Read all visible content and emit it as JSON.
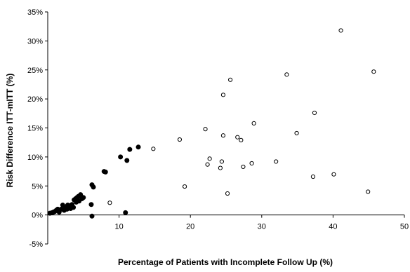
{
  "chart_data": {
    "type": "scatter",
    "title": "",
    "xlabel": "Percentage of Patients with Incomplete Follow Up (%)",
    "ylabel": "Risk Difference ITT-mITT (%)",
    "xlim": [
      0,
      50
    ],
    "ylim": [
      -5,
      35
    ],
    "x_ticks": [
      10,
      20,
      30,
      40,
      50
    ],
    "y_ticks": [
      -5,
      0,
      5,
      10,
      15,
      20,
      25,
      30,
      35
    ],
    "y_tick_suffix": "%",
    "grid": false,
    "legend": "none",
    "series": [
      {
        "marker": "filled-circle",
        "color": "#000000",
        "points": [
          [
            0.3,
            0.3
          ],
          [
            0.6,
            0.4
          ],
          [
            0.8,
            0.5
          ],
          [
            1.0,
            0.6
          ],
          [
            1.2,
            0.8
          ],
          [
            1.4,
            1.0
          ],
          [
            1.6,
            0.5
          ],
          [
            1.9,
            1.0
          ],
          [
            2.1,
            1.7
          ],
          [
            2.3,
            0.8
          ],
          [
            2.5,
            1.3
          ],
          [
            2.7,
            1.0
          ],
          [
            2.8,
            1.7
          ],
          [
            3.1,
            1.6
          ],
          [
            3.2,
            1.1
          ],
          [
            3.4,
            1.8
          ],
          [
            3.6,
            1.3
          ],
          [
            3.7,
            2.6
          ],
          [
            3.9,
            2.8
          ],
          [
            4.0,
            2.2
          ],
          [
            4.1,
            3.0
          ],
          [
            4.2,
            2.5
          ],
          [
            4.3,
            3.2
          ],
          [
            4.4,
            2.4
          ],
          [
            4.6,
            3.5
          ],
          [
            4.8,
            2.8
          ],
          [
            5.0,
            3.0
          ],
          [
            6.1,
            1.8
          ],
          [
            6.2,
            -0.2
          ],
          [
            6.2,
            5.2
          ],
          [
            6.4,
            4.8
          ],
          [
            7.9,
            7.5
          ],
          [
            8.1,
            7.4
          ],
          [
            10.2,
            10.0
          ],
          [
            10.9,
            0.4
          ],
          [
            11.1,
            9.4
          ],
          [
            11.5,
            11.3
          ],
          [
            12.7,
            11.7
          ]
        ]
      },
      {
        "marker": "open-circle",
        "color": "#000000",
        "points": [
          [
            8.7,
            2.1
          ],
          [
            14.8,
            11.4
          ],
          [
            18.5,
            13.0
          ],
          [
            19.2,
            4.9
          ],
          [
            22.1,
            14.8
          ],
          [
            22.4,
            8.7
          ],
          [
            22.7,
            9.7
          ],
          [
            24.2,
            8.1
          ],
          [
            24.4,
            9.2
          ],
          [
            24.6,
            13.7
          ],
          [
            24.6,
            20.7
          ],
          [
            25.2,
            3.7
          ],
          [
            25.6,
            23.3
          ],
          [
            26.6,
            13.4
          ],
          [
            27.1,
            12.9
          ],
          [
            27.4,
            8.3
          ],
          [
            28.6,
            8.9
          ],
          [
            28.9,
            15.8
          ],
          [
            32.0,
            9.2
          ],
          [
            33.5,
            24.2
          ],
          [
            34.9,
            14.1
          ],
          [
            37.2,
            6.6
          ],
          [
            37.4,
            17.6
          ],
          [
            40.1,
            7.0
          ],
          [
            41.1,
            31.8
          ],
          [
            44.9,
            4.0
          ],
          [
            45.7,
            24.7
          ]
        ]
      }
    ]
  }
}
